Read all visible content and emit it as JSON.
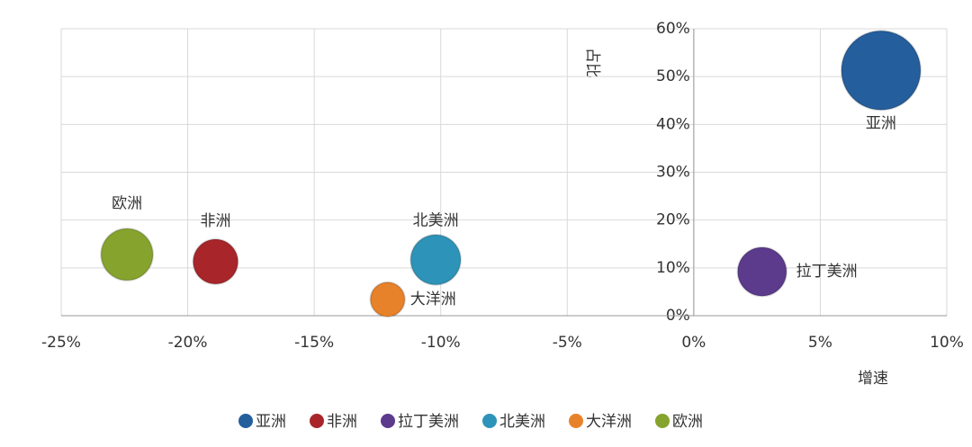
{
  "chart_data": {
    "type": "scatter",
    "bubble": true,
    "x_label": "增速",
    "y_label": "占比",
    "xlim": [
      -25,
      10
    ],
    "ylim": [
      0,
      60
    ],
    "xticks": [
      {
        "value": -25,
        "label": "-25%"
      },
      {
        "value": -20,
        "label": "-20%"
      },
      {
        "value": -15,
        "label": "-15%"
      },
      {
        "value": -10,
        "label": "-10%"
      },
      {
        "value": -5,
        "label": "-5%"
      },
      {
        "value": 0,
        "label": "0%"
      },
      {
        "value": 5,
        "label": "5%"
      },
      {
        "value": 10,
        "label": "10%"
      }
    ],
    "yticks": [
      {
        "value": 0,
        "label": "0%"
      },
      {
        "value": 10,
        "label": "10%"
      },
      {
        "value": 20,
        "label": "20%"
      },
      {
        "value": 30,
        "label": "30%"
      },
      {
        "value": 40,
        "label": "40%"
      },
      {
        "value": 50,
        "label": "50%"
      },
      {
        "value": 60,
        "label": "60%"
      }
    ],
    "grid": true,
    "legend": "bottom",
    "series": [
      {
        "name": "亚洲",
        "color": "#255e9c",
        "x": [
          7.4
        ],
        "values": [
          51.3
        ],
        "size": [
          100
        ]
      },
      {
        "name": "非洲",
        "color": "#a8262a",
        "x": [
          -18.9
        ],
        "values": [
          11.3
        ],
        "size": [
          32
        ]
      },
      {
        "name": "拉丁美洲",
        "color": "#5c3a8c",
        "x": [
          2.7
        ],
        "values": [
          9.2
        ],
        "size": [
          38
        ]
      },
      {
        "name": "北美洲",
        "color": "#2e93b8",
        "x": [
          -10.2
        ],
        "values": [
          11.7
        ],
        "size": [
          40
        ]
      },
      {
        "name": "大洋洲",
        "color": "#e8822a",
        "x": [
          -12.1
        ],
        "values": [
          3.4
        ],
        "size": [
          19
        ]
      },
      {
        "name": "欧洲",
        "color": "#86a32e",
        "x": [
          -22.4
        ],
        "values": [
          12.8
        ],
        "size": [
          43
        ]
      }
    ]
  }
}
